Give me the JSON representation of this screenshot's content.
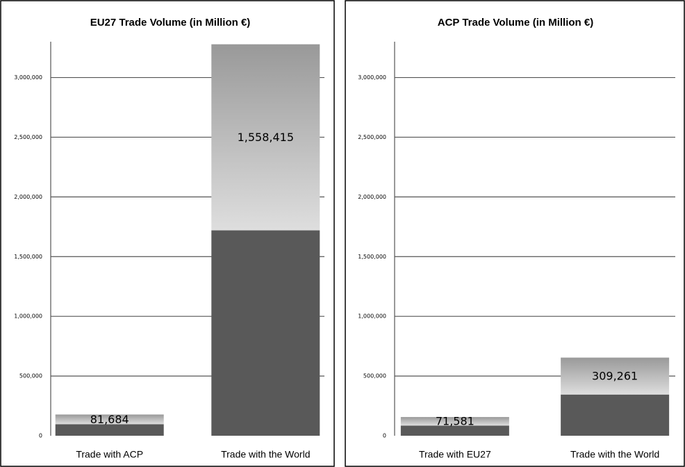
{
  "chart_data": [
    {
      "type": "stacked_bar",
      "title": "EU27 Trade Volume (in Million €)",
      "categories": [
        "Trade with ACP",
        "Trade with the World"
      ],
      "series": [
        {
          "color": "#595959",
          "values": [
            96000,
            1720000
          ]
        },
        {
          "color": "#999999",
          "values": [
            81684,
            1558415
          ],
          "value_labels": [
            "81,684",
            "1,558,415"
          ]
        }
      ],
      "ylim": [
        0,
        3300000
      ],
      "yticks": [
        0,
        {
          "value": 500000,
          "label": "500,000"
        },
        {
          "value": 1000000,
          "label": "1,000,000"
        },
        {
          "value": 1500000,
          "label": "1,500,000"
        },
        {
          "value": 2000000,
          "label": "2,000,000"
        },
        {
          "value": 2500000,
          "label": "2,500,000"
        },
        {
          "value": 3000000,
          "label": "3,000,000"
        }
      ],
      "grid": true
    },
    {
      "type": "stacked_bar",
      "title": "ACP Trade Volume (in Million €)",
      "categories": [
        "Trade with EU27",
        "Trade with the World"
      ],
      "series": [
        {
          "color": "#595959",
          "values": [
            85000,
            345000
          ]
        },
        {
          "color": "#999999",
          "values": [
            71581,
            309261
          ],
          "value_labels": [
            "71,581",
            "309,261"
          ]
        }
      ],
      "ylim": [
        0,
        3300000
      ],
      "yticks": [
        0,
        {
          "value": 500000,
          "label": "500,000"
        },
        {
          "value": 1000000,
          "label": "1,000,000"
        },
        {
          "value": 1500000,
          "label": "1,500,000"
        },
        {
          "value": 2000000,
          "label": "2,000,000"
        },
        {
          "value": 2500000,
          "label": "2,500,000"
        },
        {
          "value": 3000000,
          "label": "3,000,000"
        }
      ],
      "grid": true
    }
  ]
}
